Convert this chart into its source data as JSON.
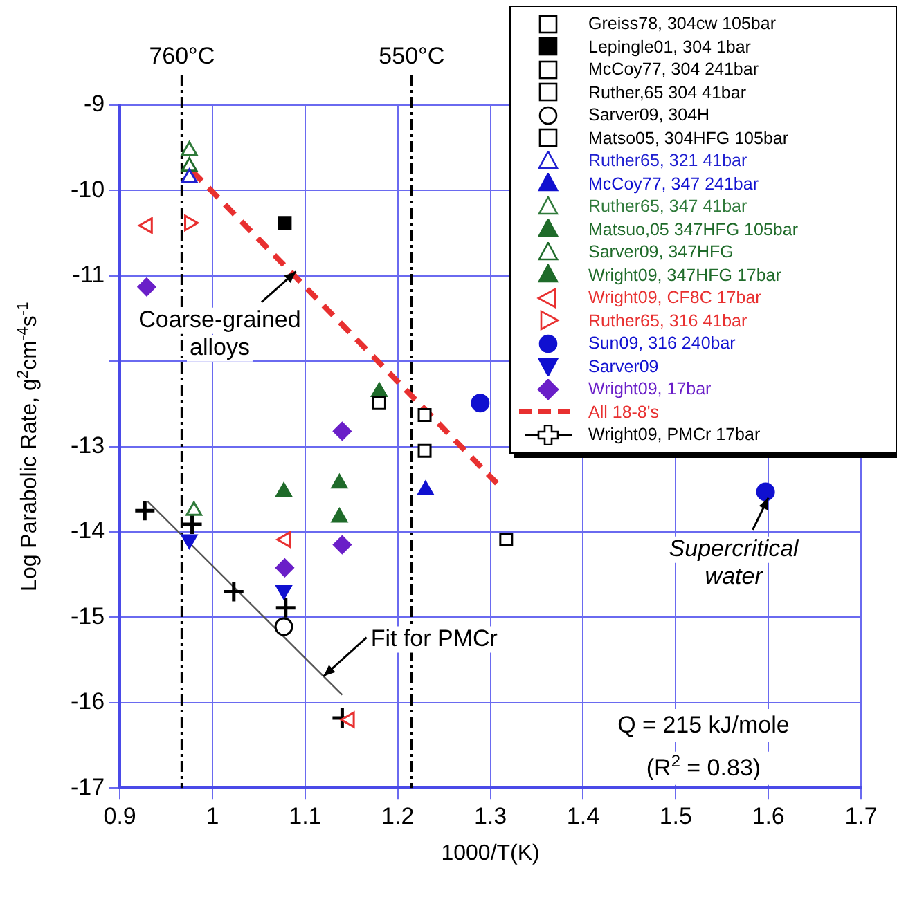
{
  "chart_data": {
    "type": "scatter",
    "xlabel": "1000/T(K)",
    "ylabel": "Log Parabolic Rate, g$^{2}$cm$^{-4}$s$^{-1}$",
    "xlim": [
      0.9,
      1.7
    ],
    "xticks": [
      0.9,
      1,
      1.1,
      1.2,
      1.3,
      1.4,
      1.5,
      1.6,
      1.7
    ],
    "ylim": [
      -17,
      -9
    ],
    "yticks": [
      -17,
      -16,
      -15,
      -14,
      -13,
      {
        "value": -12,
        "label": null
      },
      -11,
      -10,
      -9
    ],
    "grid": true,
    "legend": "top right",
    "series": [
      {
        "name": "Greiss78, 304cw 105bar",
        "color": "#000000",
        "marker": "square-open",
        "x": [
          1.317
        ],
        "values": [
          -14.09
        ]
      },
      {
        "name": "Lepingle01, 304 1bar",
        "color": "#000000",
        "marker": "square",
        "x": [
          1.078
        ],
        "values": [
          -10.38
        ]
      },
      {
        "name": "McCoy77, 304 241bar",
        "color": "#000000",
        "marker": "square-open",
        "x": [
          1.229
        ],
        "values": [
          -13.05
        ]
      },
      {
        "name": "Ruther,65 304 41bar",
        "color": "#000000",
        "marker": "square-open",
        "x": [
          1.18
        ],
        "values": [
          -12.49
        ]
      },
      {
        "name": "Sarver09, 304H",
        "color": "#000000",
        "marker": "circle-open",
        "x": [
          1.077
        ],
        "values": [
          -15.11
        ]
      },
      {
        "name": "Matso05, 304HFG 105bar",
        "color": "#000000",
        "marker": "square-open",
        "x": [
          1.229
        ],
        "values": [
          -12.63
        ]
      },
      {
        "name": "Ruther65, 321 41bar",
        "color": "#2020d0",
        "marker": "triangle-open",
        "x": [
          0.975
        ],
        "values": [
          -9.85
        ]
      },
      {
        "name": "McCoy77, 347 241bar",
        "color": "#1010d0",
        "marker": "triangle",
        "x": [
          1.23
        ],
        "values": [
          -13.51
        ]
      },
      {
        "name": "Ruther65, 347 41bar",
        "color": "#2f7a3a",
        "marker": "triangle-open",
        "x": [
          0.975,
          0.98
        ],
        "values": [
          -9.53,
          -13.75
        ]
      },
      {
        "name": "Matsuo,05 347HFG 105bar",
        "color": "#1f6b2a",
        "marker": "triangle",
        "x": [
          1.18
        ],
        "values": [
          -12.36
        ]
      },
      {
        "name": "Sarver09, 347HFG",
        "color": "#1f6b2a",
        "marker": "triangle-open",
        "x": [
          0.975
        ],
        "values": [
          -9.72
        ]
      },
      {
        "name": "Wright09, 347HFG 17bar",
        "color": "#1f6b2a",
        "marker": "triangle",
        "x": [
          1.077,
          1.137,
          1.137
        ],
        "values": [
          -13.53,
          -13.43,
          -13.83
        ]
      },
      {
        "name": "Wright09, CF8C 17bar",
        "color": "#e83030",
        "marker": "triangle-left-open",
        "x": [
          0.93,
          1.079,
          1.148
        ],
        "values": [
          -10.41,
          -14.09,
          -16.2
        ]
      },
      {
        "name": "Ruther65, 316 41bar",
        "color": "#e83030",
        "marker": "triangle-right-open",
        "x": [
          0.975
        ],
        "values": [
          -10.38
        ]
      },
      {
        "name": "Sun09, 316 240bar",
        "color": "#1010d0",
        "marker": "circle",
        "x": [
          1.289,
          1.597
        ],
        "values": [
          -12.49,
          -13.53
        ]
      },
      {
        "name": "Sarver09",
        "color": "#1010d0",
        "marker": "triangle-down",
        "x": [
          0.975,
          1.077
        ],
        "values": [
          -14.09,
          -14.68
        ]
      },
      {
        "name": "Wright09, 17bar",
        "color": "#6a1fc8",
        "marker": "diamond",
        "x": [
          0.929,
          1.14,
          1.14,
          1.078
        ],
        "values": [
          -11.13,
          -12.82,
          -14.15,
          -14.42
        ]
      },
      {
        "name": "All 18-8's",
        "color": "#e83030",
        "type": "line",
        "line_style": "dashed",
        "marker": "none",
        "x": [
          0.978,
          1.307
        ],
        "values": [
          -9.77,
          -13.43
        ]
      },
      {
        "name": "Wright09, PMCr 17bar",
        "color": "#000000",
        "marker": "cross",
        "x": [
          0.927,
          0.978,
          1.023,
          1.079,
          1.14
        ],
        "values": [
          -13.75,
          -13.91,
          -14.7,
          -14.89,
          -16.18
        ]
      },
      {
        "color": "#555555",
        "type": "line",
        "line_style": "solid",
        "marker": "none",
        "x": [
          0.93,
          1.14
        ],
        "values": [
          -13.64,
          -15.91
        ]
      }
    ],
    "ref_lines": [
      {
        "axis": "x",
        "value": 0.967,
        "label": "760°C",
        "color": "#000000",
        "line_style": "dashed"
      },
      {
        "axis": "x",
        "value": 1.215,
        "label": "550°C",
        "color": "#000000",
        "line_style": "dashed"
      }
    ],
    "annotations": [
      {
        "text": "Coarse-grained alloys",
        "x": 1.09,
        "y": -10.95
      },
      {
        "text": "Fit for PMCr",
        "x": 1.12,
        "y": -15.69
      },
      {
        "text": "Supercritical water",
        "x": 1.6,
        "y": -13.6
      },
      "Q = 215 kJ/mole",
      "(R$^{2}$ = 0.83)"
    ]
  }
}
